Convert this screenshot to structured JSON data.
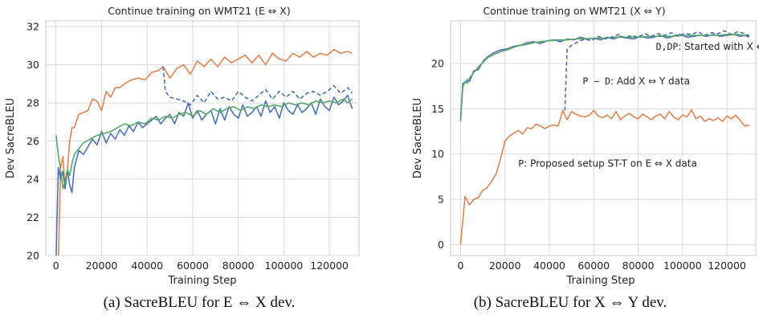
{
  "captions": {
    "left": "(a) SacreBLEU for E ⇔ X dev.",
    "right": "(b) SacreBLEU for X ⇔ Y dev."
  },
  "colors": {
    "blue": "#4C72B0",
    "orange": "#DD8452",
    "green": "#55A868",
    "grid": "#DADADA",
    "frame": "#C8C8C8"
  },
  "chart_data": [
    {
      "type": "line",
      "title": "Continue training on WMT21 (E ⇔ X)",
      "xlabel": "Training Step",
      "ylabel": "Dev SacreBLEU",
      "xlim": [
        -4500,
        133000
      ],
      "ylim": [
        20,
        32.3
      ],
      "xticks": [
        0,
        20000,
        40000,
        60000,
        80000,
        100000,
        120000
      ],
      "yticks": [
        20,
        22,
        24,
        26,
        28,
        30,
        32
      ],
      "grid": true,
      "annotations": [],
      "series": [
        {
          "color": "orange",
          "style": "solid",
          "x": [
            1000,
            2000,
            3000,
            4000,
            5000,
            6000,
            7000,
            8000,
            10000,
            12000,
            14000,
            16000,
            18000,
            20000,
            22000,
            24000,
            26000,
            28000,
            30000,
            33000,
            36000,
            39000,
            42000,
            45000,
            47000,
            50000,
            53000,
            56000,
            59000,
            62000,
            65000,
            68000,
            71000,
            74000,
            77000,
            80000,
            83000,
            86000,
            89000,
            92000,
            95000,
            98000,
            101000,
            104000,
            107000,
            110000,
            113000,
            116000,
            119000,
            122000,
            125000,
            128000,
            130000
          ],
          "y": [
            19.5,
            24.6,
            25.2,
            23.5,
            24.5,
            26.0,
            26.7,
            26.7,
            27.4,
            27.5,
            27.6,
            28.2,
            28.1,
            27.6,
            28.6,
            28.3,
            28.8,
            28.8,
            29.0,
            29.2,
            29.3,
            29.2,
            29.6,
            29.7,
            29.9,
            29.3,
            29.8,
            30.0,
            29.5,
            30.2,
            29.9,
            30.3,
            29.9,
            30.4,
            30.1,
            30.3,
            30.5,
            30.1,
            30.5,
            30.0,
            30.6,
            30.3,
            30.2,
            30.6,
            30.4,
            30.7,
            30.4,
            30.6,
            30.5,
            30.8,
            30.6,
            30.7,
            30.6
          ]
        },
        {
          "color": "blue",
          "style": "solid",
          "x": [
            0,
            1000,
            2000,
            3000,
            4000,
            5000,
            6000,
            7000,
            8000,
            10000,
            12000,
            14000,
            16000,
            18000,
            20000,
            22000,
            24000,
            26000,
            28000,
            30000,
            32000,
            34000,
            36000,
            38000,
            40000,
            42000,
            44000,
            46000,
            48000,
            50000,
            52000,
            54000,
            56000,
            58000,
            60000,
            62000,
            64000,
            66000,
            68000,
            70000,
            72000,
            74000,
            76000,
            78000,
            80000,
            82000,
            84000,
            86000,
            88000,
            90000,
            92000,
            94000,
            96000,
            98000,
            100000,
            102000,
            104000,
            106000,
            108000,
            110000,
            112000,
            114000,
            116000,
            118000,
            120000,
            122000,
            124000,
            126000,
            128000,
            130000
          ],
          "y": [
            19.8,
            24.6,
            24.0,
            24.4,
            23.5,
            24.5,
            23.7,
            23.3,
            24.6,
            25.5,
            25.3,
            25.7,
            26.1,
            25.8,
            26.5,
            25.9,
            26.4,
            26.1,
            26.6,
            26.3,
            26.8,
            26.5,
            27.0,
            26.7,
            26.9,
            27.1,
            27.3,
            26.9,
            27.2,
            27.4,
            26.9,
            27.5,
            27.3,
            28.0,
            27.2,
            27.6,
            27.1,
            27.4,
            27.6,
            26.9,
            27.7,
            27.1,
            27.8,
            27.4,
            27.2,
            27.9,
            27.3,
            27.5,
            27.8,
            27.3,
            28.1,
            27.5,
            27.8,
            27.2,
            28.0,
            27.6,
            27.4,
            27.9,
            27.5,
            27.7,
            28.0,
            27.4,
            28.2,
            27.8,
            27.6,
            28.3,
            27.9,
            28.1,
            28.4,
            27.7
          ]
        },
        {
          "color": "green",
          "style": "solid",
          "x": [
            0,
            1000,
            2000,
            3000,
            4000,
            5000,
            6000,
            7000,
            8000,
            10000,
            12000,
            15000,
            18000,
            21000,
            24000,
            27000,
            30000,
            33000,
            36000,
            39000,
            42000,
            45000,
            48000,
            51000,
            54000,
            57000,
            60000,
            63000,
            66000,
            69000,
            72000,
            75000,
            78000,
            81000,
            84000,
            87000,
            90000,
            93000,
            96000,
            99000,
            102000,
            105000,
            108000,
            111000,
            114000,
            117000,
            120000,
            123000,
            126000,
            128000,
            130000
          ],
          "y": [
            26.3,
            25.3,
            24.5,
            23.5,
            23.9,
            24.5,
            24.2,
            24.8,
            25.3,
            25.6,
            25.9,
            26.1,
            26.3,
            26.4,
            26.5,
            26.7,
            26.9,
            26.8,
            27.0,
            26.9,
            27.2,
            27.1,
            27.3,
            27.2,
            27.4,
            27.5,
            27.3,
            27.6,
            27.4,
            27.7,
            27.5,
            27.7,
            27.8,
            27.6,
            27.8,
            27.7,
            27.9,
            27.8,
            27.9,
            27.8,
            28.0,
            27.9,
            28.0,
            27.9,
            28.1,
            28.0,
            28.1,
            28.0,
            28.2,
            28.0,
            28.2
          ]
        },
        {
          "color": "blue",
          "style": "dashed",
          "x": [
            47000,
            48000,
            50000,
            53000,
            56000,
            59000,
            62000,
            65000,
            68000,
            71000,
            74000,
            77000,
            80000,
            83000,
            86000,
            89000,
            92000,
            95000,
            98000,
            101000,
            104000,
            107000,
            110000,
            113000,
            116000,
            119000,
            122000,
            125000,
            128000,
            130000
          ],
          "y": [
            29.9,
            28.6,
            28.3,
            28.2,
            28.1,
            27.9,
            28.4,
            28.0,
            28.6,
            28.2,
            28.3,
            28.1,
            28.6,
            28.3,
            28.1,
            28.4,
            28.7,
            28.2,
            28.6,
            28.3,
            28.6,
            28.2,
            28.5,
            28.6,
            28.4,
            28.6,
            28.9,
            28.5,
            28.8,
            28.5
          ]
        }
      ]
    },
    {
      "type": "line",
      "title": "Continue training on WMT21 (X ⇔ Y)",
      "xlabel": "Training Step",
      "ylabel": "Dev SacreBLEU",
      "xlim": [
        -4500,
        133000
      ],
      "ylim": [
        -1.2,
        24.7
      ],
      "xticks": [
        0,
        20000,
        40000,
        60000,
        80000,
        100000,
        120000
      ],
      "yticks": [
        0,
        5,
        10,
        15,
        20
      ],
      "grid": true,
      "annotations": [
        {
          "code": "D,DP",
          "text": ": Started with X ⇔ Y data",
          "at": [
            88000,
            21.5
          ]
        },
        {
          "code": "P − D",
          "text": ": Add X ⇔ Y data",
          "at": [
            55000,
            17.7
          ]
        },
        {
          "code": "P",
          "text": ": Proposed setup ST-T on E ⇔ X data",
          "at": [
            26000,
            8.6
          ]
        }
      ],
      "series": [
        {
          "color": "orange",
          "style": "solid",
          "x": [
            0,
            2000,
            4000,
            6000,
            8000,
            10000,
            12000,
            14000,
            16000,
            18000,
            20000,
            22000,
            24000,
            26000,
            28000,
            30000,
            32000,
            34000,
            36000,
            38000,
            40000,
            42000,
            44000,
            46000,
            48000,
            50000,
            52000,
            54000,
            56000,
            58000,
            60000,
            62000,
            64000,
            66000,
            68000,
            70000,
            72000,
            74000,
            76000,
            78000,
            80000,
            82000,
            84000,
            86000,
            88000,
            90000,
            92000,
            94000,
            96000,
            98000,
            100000,
            102000,
            104000,
            106000,
            108000,
            110000,
            112000,
            114000,
            116000,
            118000,
            120000,
            122000,
            124000,
            126000,
            128000,
            130000
          ],
          "y": [
            0.0,
            5.3,
            4.4,
            5.0,
            5.2,
            6.0,
            6.3,
            7.0,
            7.8,
            9.5,
            11.4,
            12.0,
            12.3,
            12.6,
            12.2,
            12.9,
            12.8,
            13.3,
            13.1,
            12.8,
            13.1,
            13.2,
            13.1,
            14.8,
            13.8,
            14.7,
            14.4,
            14.2,
            14.1,
            14.3,
            14.8,
            14.2,
            14.0,
            14.3,
            13.9,
            14.7,
            13.8,
            14.2,
            14.5,
            14.1,
            13.9,
            14.4,
            14.1,
            13.8,
            14.2,
            14.4,
            13.9,
            14.7,
            14.1,
            13.8,
            14.3,
            14.1,
            14.9,
            13.9,
            14.2,
            13.6,
            13.9,
            13.7,
            14.0,
            13.6,
            14.2,
            13.9,
            14.3,
            13.7,
            13.1,
            13.2
          ]
        },
        {
          "color": "blue",
          "style": "solid",
          "x": [
            0,
            1000,
            2000,
            3000,
            4000,
            5000,
            6000,
            8000,
            10000,
            12000,
            15000,
            18000,
            21000,
            24000,
            27000,
            30000,
            33000,
            36000,
            39000,
            42000,
            45000,
            48000,
            51000,
            54000,
            57000,
            60000,
            63000,
            66000,
            69000,
            72000,
            75000,
            78000,
            81000,
            84000,
            87000,
            90000,
            93000,
            96000,
            99000,
            102000,
            105000,
            108000,
            111000,
            114000,
            117000,
            120000,
            123000,
            126000,
            128000,
            130000
          ],
          "y": [
            13.7,
            17.8,
            17.9,
            18.2,
            18.0,
            18.6,
            19.2,
            19.3,
            20.2,
            20.7,
            21.2,
            21.5,
            21.6,
            21.9,
            22.0,
            22.3,
            22.4,
            22.2,
            22.5,
            22.6,
            22.4,
            22.7,
            22.6,
            22.9,
            22.7,
            22.8,
            22.6,
            22.9,
            22.7,
            23.0,
            22.8,
            22.7,
            23.0,
            22.8,
            22.9,
            23.1,
            22.8,
            23.0,
            23.2,
            22.9,
            23.0,
            23.1,
            23.0,
            23.2,
            23.0,
            23.1,
            23.2,
            23.0,
            23.1,
            22.9
          ]
        },
        {
          "color": "green",
          "style": "solid",
          "x": [
            0,
            1000,
            2000,
            3000,
            4000,
            6000,
            8000,
            10000,
            12000,
            15000,
            18000,
            21000,
            24000,
            27000,
            30000,
            33000,
            36000,
            40000,
            44000,
            48000,
            52000,
            56000,
            60000,
            65000,
            70000,
            75000,
            80000,
            85000,
            90000,
            95000,
            100000,
            105000,
            110000,
            115000,
            120000,
            125000,
            128000,
            130000
          ],
          "y": [
            13.6,
            17.4,
            18.0,
            17.8,
            18.4,
            19.0,
            19.6,
            20.1,
            20.6,
            21.0,
            21.3,
            21.5,
            21.8,
            22.0,
            22.1,
            22.3,
            22.4,
            22.5,
            22.6,
            22.6,
            22.7,
            22.7,
            22.8,
            22.8,
            22.9,
            22.9,
            22.9,
            23.0,
            23.0,
            23.0,
            23.1,
            23.1,
            23.1,
            23.1,
            23.2,
            23.2,
            23.1,
            23.2
          ]
        },
        {
          "color": "blue",
          "style": "dashed",
          "x": [
            47000,
            48000,
            50000,
            53000,
            56000,
            59000,
            62000,
            65000,
            68000,
            71000,
            74000,
            77000,
            80000,
            83000,
            86000,
            89000,
            92000,
            95000,
            98000,
            101000,
            104000,
            107000,
            110000,
            113000,
            116000,
            119000,
            122000,
            125000,
            128000,
            130000
          ],
          "y": [
            14.8,
            21.6,
            22.0,
            22.4,
            22.7,
            22.5,
            23.0,
            22.7,
            22.9,
            23.2,
            22.8,
            23.1,
            22.9,
            23.3,
            23.0,
            23.3,
            23.1,
            23.4,
            23.0,
            23.3,
            23.2,
            23.5,
            23.1,
            23.4,
            23.3,
            23.6,
            23.2,
            23.5,
            23.3,
            23.0
          ]
        }
      ]
    }
  ]
}
